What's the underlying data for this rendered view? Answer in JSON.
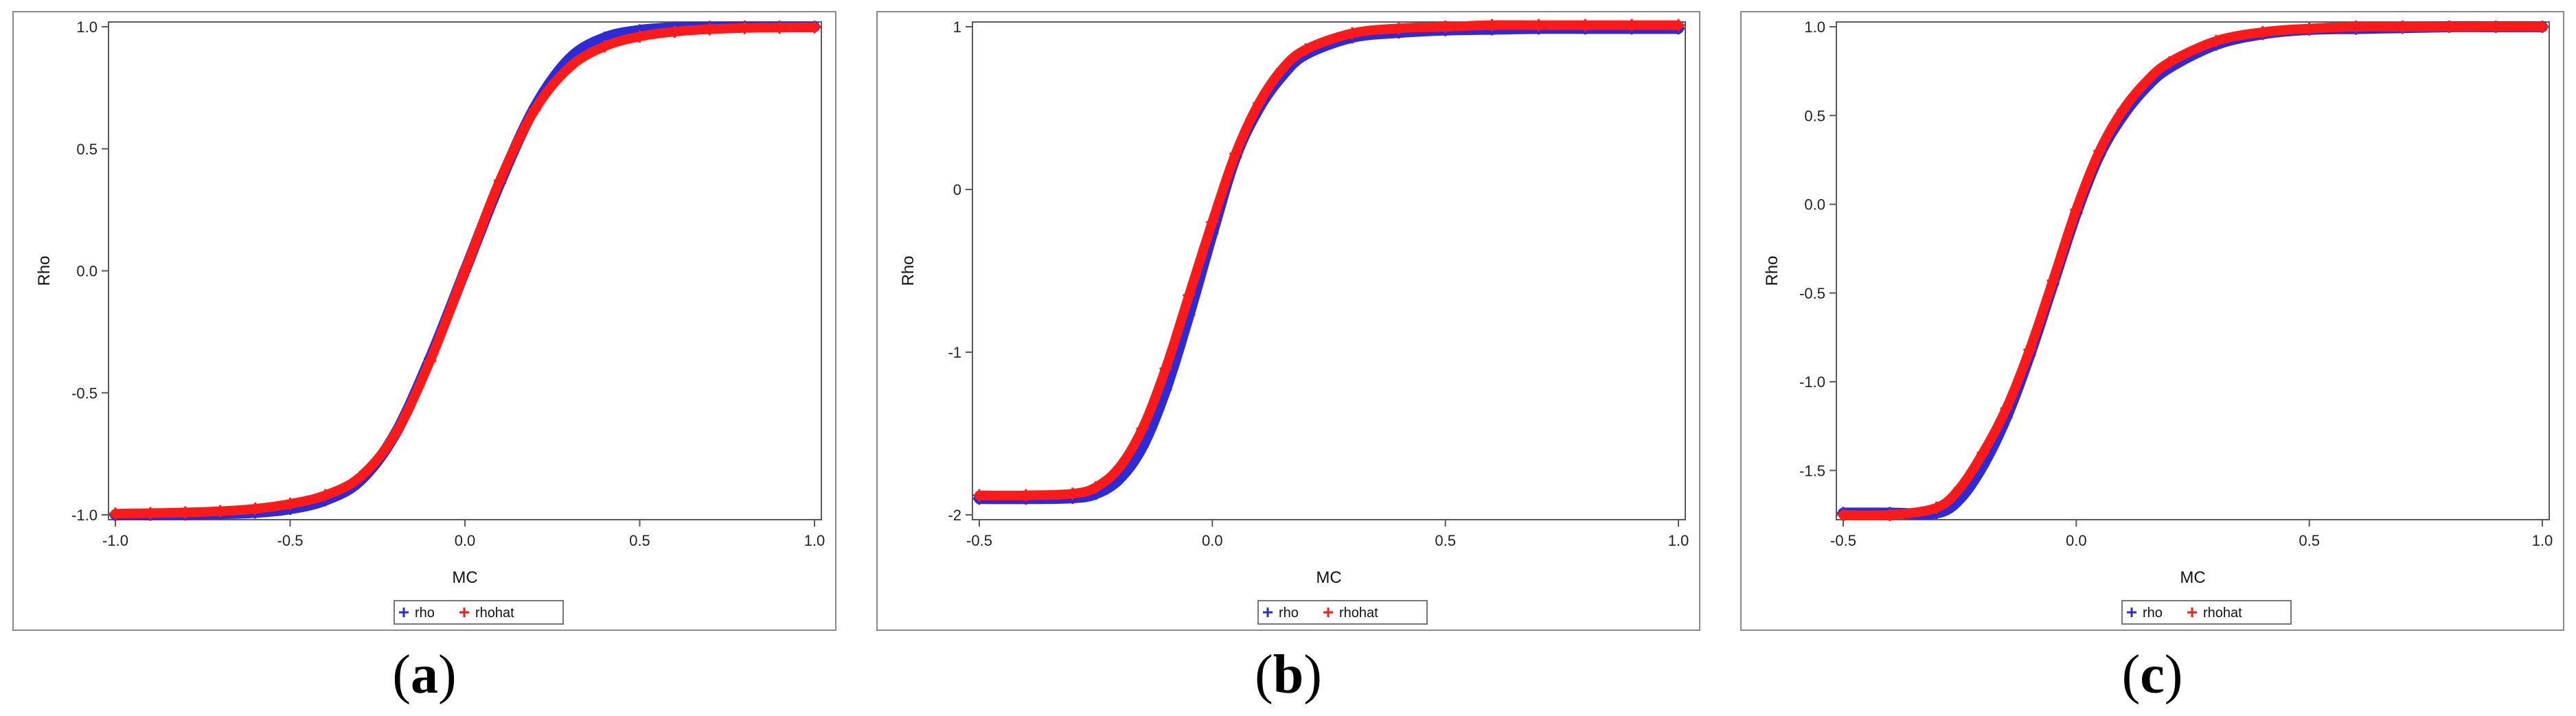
{
  "colors": {
    "rho": "#2b2bd9",
    "rhohat": "#ff1a1a",
    "axis": "#5a5a5a"
  },
  "chart_data": [
    {
      "type": "scatter",
      "panel_label": "a",
      "xlabel": "MC",
      "ylabel": "Rho",
      "xlim": [
        -1.0,
        1.0
      ],
      "ylim": [
        -1.0,
        1.0
      ],
      "xticks": [
        -1.0,
        -0.5,
        0.0,
        0.5,
        1.0
      ],
      "xtick_labels": [
        "-1.0",
        "-0.5",
        "0.0",
        "0.5",
        "1.0"
      ],
      "yticks": [
        -1.0,
        -0.5,
        0.0,
        0.5,
        1.0
      ],
      "ytick_labels": [
        "-1.0",
        "-0.5",
        "0.0",
        "0.5",
        "1.0"
      ],
      "legend": [
        "rho",
        "rhohat"
      ],
      "legend_position": "bottom-center",
      "series": [
        {
          "name": "rho",
          "marker": "+",
          "x": [
            -1.0,
            -0.9,
            -0.8,
            -0.7,
            -0.6,
            -0.5,
            -0.4,
            -0.3,
            -0.2,
            -0.1,
            0.0,
            0.1,
            0.2,
            0.3,
            0.4,
            0.5,
            0.6,
            0.7,
            0.8,
            0.9,
            1.0
          ],
          "y": [
            -1.0,
            -0.999,
            -0.998,
            -0.995,
            -0.99,
            -0.975,
            -0.94,
            -0.86,
            -0.67,
            -0.36,
            0.0,
            0.36,
            0.67,
            0.87,
            0.955,
            0.985,
            0.996,
            0.999,
            1.0,
            1.0,
            1.0
          ]
        },
        {
          "name": "rhohat",
          "marker": "+",
          "x": [
            -1.0,
            -0.9,
            -0.8,
            -0.7,
            -0.6,
            -0.5,
            -0.4,
            -0.3,
            -0.2,
            -0.1,
            0.0,
            0.1,
            0.2,
            0.3,
            0.4,
            0.5,
            0.6,
            0.7,
            0.8,
            0.9,
            1.0
          ],
          "y": [
            -0.995,
            -0.993,
            -0.99,
            -0.985,
            -0.975,
            -0.955,
            -0.92,
            -0.845,
            -0.67,
            -0.37,
            0.0,
            0.37,
            0.66,
            0.835,
            0.92,
            0.96,
            0.98,
            0.99,
            0.995,
            0.997,
            0.998
          ]
        }
      ]
    },
    {
      "type": "scatter",
      "panel_label": "b",
      "xlabel": "MC",
      "ylabel": "Rho",
      "xlim": [
        -0.5,
        1.0
      ],
      "ylim": [
        -2.0,
        1.0
      ],
      "xticks": [
        -0.5,
        0.0,
        0.5,
        1.0
      ],
      "xtick_labels": [
        "-0.5",
        "0.0",
        "0.5",
        "1.0"
      ],
      "yticks": [
        -2,
        -1,
        0,
        1
      ],
      "ytick_labels": [
        "-2",
        "-1",
        "0",
        "1"
      ],
      "legend": [
        "rho",
        "rhohat"
      ],
      "legend_position": "bottom-center",
      "series": [
        {
          "name": "rho",
          "marker": "+",
          "x": [
            -0.5,
            -0.4,
            -0.3,
            -0.25,
            -0.2,
            -0.15,
            -0.1,
            -0.05,
            0.0,
            0.05,
            0.1,
            0.15,
            0.2,
            0.3,
            0.4,
            0.5,
            0.6,
            0.7,
            0.8,
            0.9,
            1.0
          ],
          "y": [
            -1.9,
            -1.9,
            -1.895,
            -1.87,
            -1.78,
            -1.58,
            -1.23,
            -0.77,
            -0.27,
            0.2,
            0.5,
            0.7,
            0.83,
            0.935,
            0.965,
            0.98,
            0.985,
            0.99,
            0.99,
            0.99,
            0.99
          ]
        },
        {
          "name": "rhohat",
          "marker": "+",
          "x": [
            -0.5,
            -0.4,
            -0.3,
            -0.25,
            -0.2,
            -0.15,
            -0.1,
            -0.05,
            0.0,
            0.05,
            0.1,
            0.15,
            0.2,
            0.3,
            0.4,
            0.5,
            0.6,
            0.7,
            0.8,
            0.9,
            1.0
          ],
          "y": [
            -1.88,
            -1.88,
            -1.87,
            -1.83,
            -1.71,
            -1.47,
            -1.1,
            -0.65,
            -0.2,
            0.22,
            0.53,
            0.74,
            0.86,
            0.96,
            0.99,
            1.0,
            1.01,
            1.01,
            1.01,
            1.01,
            1.01
          ]
        }
      ]
    },
    {
      "type": "scatter",
      "panel_label": "c",
      "xlabel": "MC",
      "ylabel": "Rho",
      "xlim": [
        -0.5,
        1.0
      ],
      "ylim": [
        -1.75,
        1.0
      ],
      "xticks": [
        -0.5,
        0.0,
        0.5,
        1.0
      ],
      "xtick_labels": [
        "-0.5",
        "0.0",
        "0.5",
        "1.0"
      ],
      "yticks": [
        -1.5,
        -1.0,
        -0.5,
        0.0,
        0.5,
        1.0
      ],
      "ytick_labels": [
        "-1.5",
        "-1.0",
        "-0.5",
        "0.0",
        "0.5",
        "1.0"
      ],
      "legend": [
        "rho",
        "rhohat"
      ],
      "legend_position": "bottom-center",
      "series": [
        {
          "name": "rho",
          "marker": "+",
          "x": [
            -0.5,
            -0.4,
            -0.3,
            -0.25,
            -0.2,
            -0.15,
            -0.1,
            -0.05,
            0.0,
            0.05,
            0.1,
            0.15,
            0.2,
            0.3,
            0.4,
            0.5,
            0.6,
            0.7,
            0.8,
            0.9,
            1.0
          ],
          "y": [
            -1.74,
            -1.74,
            -1.74,
            -1.66,
            -1.47,
            -1.2,
            -0.85,
            -0.45,
            -0.05,
            0.28,
            0.5,
            0.66,
            0.77,
            0.9,
            0.96,
            0.985,
            0.99,
            0.995,
            1.0,
            1.0,
            1.0
          ]
        },
        {
          "name": "rhohat",
          "marker": "+",
          "x": [
            -0.5,
            -0.4,
            -0.3,
            -0.25,
            -0.2,
            -0.15,
            -0.1,
            -0.05,
            0.0,
            0.05,
            0.1,
            0.15,
            0.2,
            0.3,
            0.4,
            0.5,
            0.6,
            0.7,
            0.8,
            0.9,
            1.0
          ],
          "y": [
            -1.75,
            -1.75,
            -1.71,
            -1.6,
            -1.4,
            -1.15,
            -0.82,
            -0.43,
            -0.03,
            0.3,
            0.53,
            0.69,
            0.8,
            0.92,
            0.97,
            0.99,
            1.0,
            1.0,
            1.0,
            1.0,
            1.0
          ]
        }
      ]
    }
  ]
}
